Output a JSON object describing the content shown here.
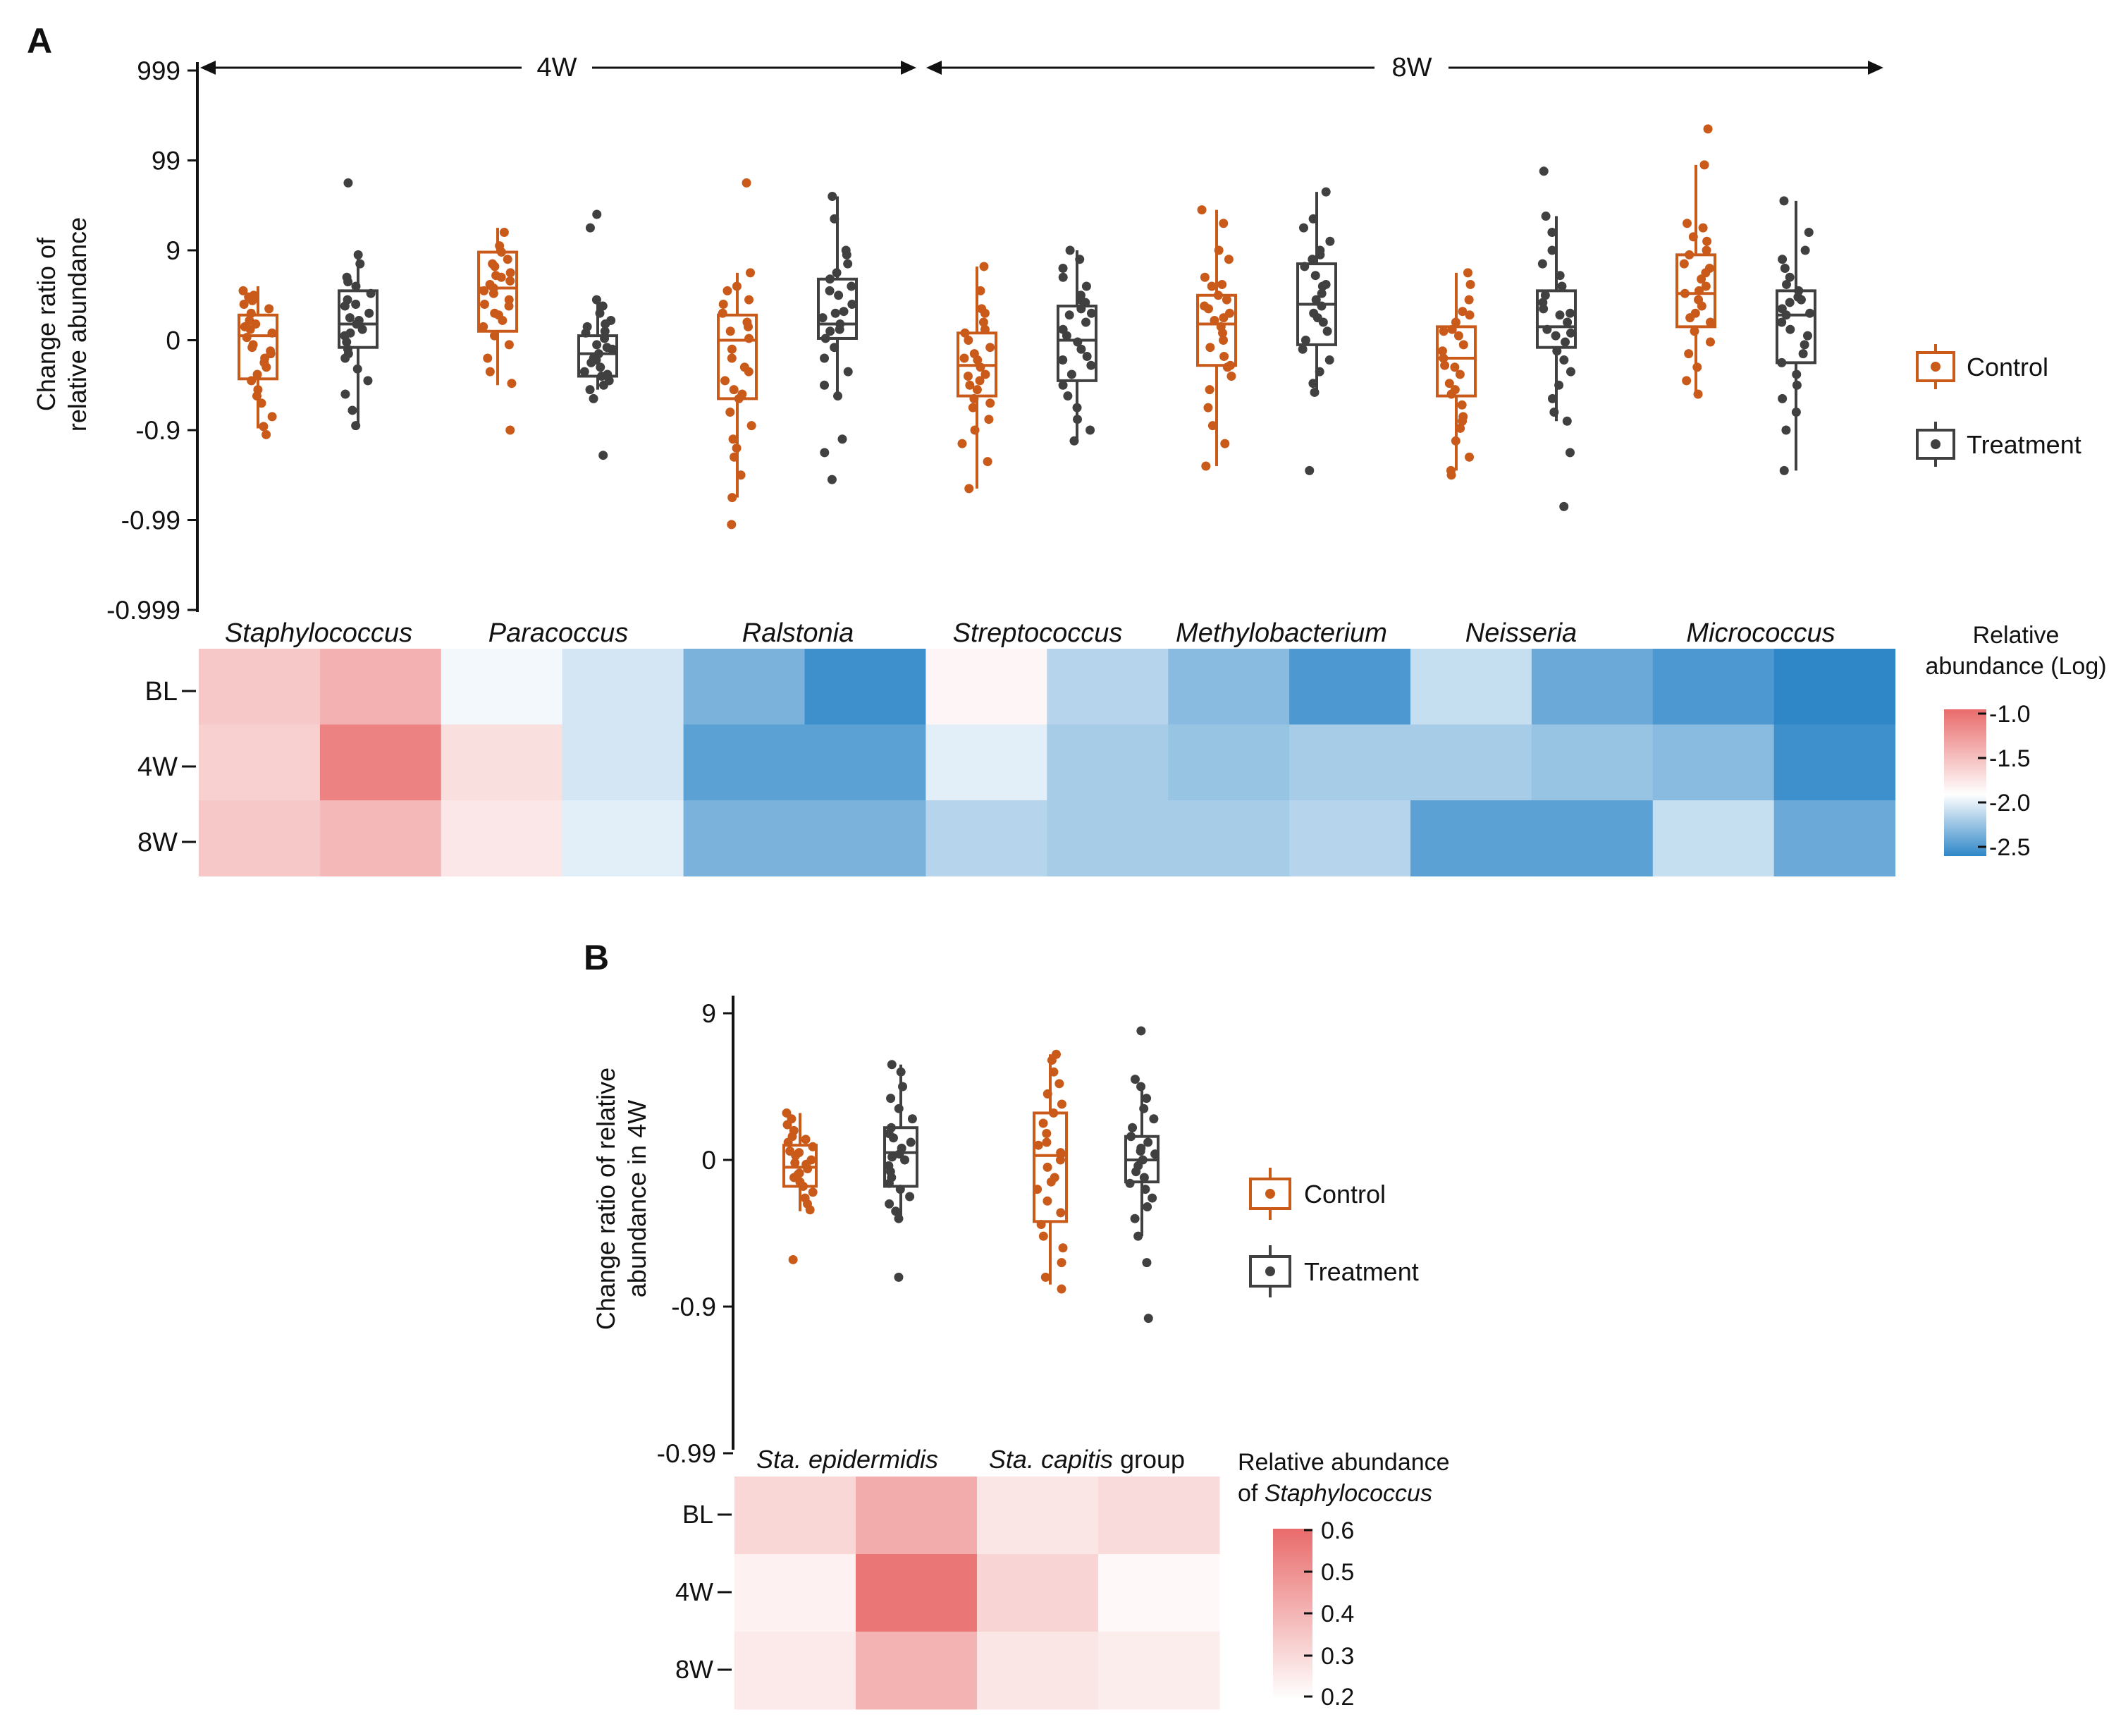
{
  "colors": {
    "control": "#c95a1a",
    "treatment": "#404040",
    "heat_high": "#e96b6b",
    "heat_mid": "#ffffff",
    "heat_low": "#2f87c8",
    "axis": "#111111"
  },
  "chart_data": [
    {
      "panel": "A",
      "type": "box",
      "ylabel_lines": [
        "Change ratio of",
        "relative abundance"
      ],
      "y_ticks": [
        "999",
        "99",
        "9",
        "0",
        "-0.9",
        "-0.99",
        "-0.999"
      ],
      "period_labels": [
        "4W",
        "8W"
      ],
      "categories": [
        "Staphylococcus",
        "Paracoccus",
        "Ralstonia",
        "Streptococcus",
        "Methylobacterium",
        "Neisseria",
        "Micrococcus"
      ],
      "legend": [
        "Control",
        "Treatment"
      ],
      "series": [
        {
          "name": "Control",
          "color_key": "control",
          "boxes": [
            {
              "q1": -0.43,
              "med": 0.05,
              "q3": 0.28,
              "lo": -0.98,
              "hi": 0.6,
              "pts": [
                0.55,
                0.48,
                0.4,
                0.3,
                0.22,
                0.15,
                0.08,
                0.03,
                -0.05,
                -0.12,
                -0.2,
                -0.3,
                -0.38,
                -0.45,
                -0.55,
                -0.7,
                -0.85,
                -0.96,
                -1.05,
                0.35,
                0.12,
                -0.25,
                0.44,
                -0.62,
                0.18,
                -0.08,
                0.5,
                -0.15
              ]
            },
            {
              "q1": 0.1,
              "med": 0.58,
              "q3": 0.98,
              "lo": -0.5,
              "hi": 1.25,
              "pts": [
                1.2,
                1.05,
                0.98,
                0.9,
                0.82,
                0.75,
                0.7,
                0.62,
                0.58,
                0.52,
                0.45,
                0.38,
                0.3,
                0.22,
                0.15,
                0.05,
                -0.05,
                -0.2,
                -0.35,
                -0.48,
                -1.0,
                0.85,
                0.66,
                0.4,
                0.28,
                0.72,
                0.55
              ]
            },
            {
              "q1": -0.65,
              "med": 0.0,
              "q3": 0.28,
              "lo": -1.75,
              "hi": 0.75,
              "pts": [
                1.75,
                0.75,
                0.6,
                0.45,
                0.4,
                0.3,
                0.2,
                0.1,
                0.02,
                -0.1,
                -0.2,
                -0.3,
                -0.45,
                -0.55,
                -0.65,
                -0.8,
                -0.95,
                -1.1,
                -1.3,
                -1.5,
                -1.75,
                -2.05,
                0.55,
                -0.35,
                0.15,
                -0.6,
                -1.2
              ]
            },
            {
              "q1": -0.62,
              "med": -0.28,
              "q3": 0.08,
              "lo": -1.65,
              "hi": 0.82,
              "pts": [
                0.82,
                0.55,
                0.35,
                0.2,
                0.08,
                0.0,
                -0.08,
                -0.15,
                -0.22,
                -0.3,
                -0.38,
                -0.45,
                -0.55,
                -0.65,
                -0.75,
                -0.88,
                -1.0,
                -1.15,
                -1.35,
                -1.65,
                0.12,
                -0.4,
                -0.2,
                -0.7,
                0.3,
                -0.5
              ]
            },
            {
              "q1": -0.28,
              "med": 0.18,
              "q3": 0.5,
              "lo": -1.4,
              "hi": 1.45,
              "pts": [
                1.45,
                1.3,
                1.0,
                0.9,
                0.7,
                0.6,
                0.5,
                0.45,
                0.38,
                0.3,
                0.22,
                0.15,
                0.08,
                0.0,
                -0.08,
                -0.18,
                -0.28,
                -0.4,
                -0.55,
                -0.75,
                -0.95,
                -1.15,
                -1.4,
                0.25,
                0.62,
                -0.3,
                0.35
              ]
            },
            {
              "q1": -0.62,
              "med": -0.2,
              "q3": 0.15,
              "lo": -1.45,
              "hi": 0.75,
              "pts": [
                0.75,
                0.62,
                0.45,
                0.32,
                0.2,
                0.12,
                0.05,
                -0.05,
                -0.12,
                -0.2,
                -0.28,
                -0.38,
                -0.48,
                -0.6,
                -0.72,
                -0.85,
                -0.98,
                -1.12,
                -1.3,
                -1.45,
                -1.5,
                0.1,
                -0.3,
                -0.55,
                0.28,
                -0.9
              ]
            },
            {
              "q1": 0.15,
              "med": 0.52,
              "q3": 0.95,
              "lo": -0.6,
              "hi": 1.95,
              "pts": [
                2.35,
                1.95,
                1.3,
                1.25,
                1.1,
                1.0,
                0.95,
                0.85,
                0.75,
                0.68,
                0.6,
                0.52,
                0.45,
                0.38,
                0.3,
                0.2,
                0.1,
                -0.02,
                -0.15,
                -0.3,
                -0.45,
                -0.6,
                0.8,
                0.55,
                0.25,
                1.15
              ]
            }
          ]
        },
        {
          "name": "Treatment",
          "color_key": "treatment",
          "boxes": [
            {
              "q1": -0.08,
              "med": 0.18,
              "q3": 0.55,
              "lo": -0.95,
              "hi": 0.95,
              "pts": [
                1.75,
                0.95,
                0.85,
                0.7,
                0.6,
                0.52,
                0.45,
                0.38,
                0.3,
                0.22,
                0.18,
                0.12,
                0.05,
                -0.02,
                -0.1,
                -0.2,
                -0.32,
                -0.45,
                -0.6,
                -0.78,
                -0.95,
                0.4,
                0.25,
                -0.15,
                0.65,
                0.08
              ]
            },
            {
              "q1": -0.4,
              "med": -0.15,
              "q3": 0.05,
              "lo": -0.55,
              "hi": 0.45,
              "pts": [
                1.4,
                1.25,
                0.45,
                0.38,
                0.3,
                0.22,
                0.15,
                0.08,
                0.02,
                -0.05,
                -0.1,
                -0.15,
                -0.2,
                -0.25,
                -0.3,
                -0.35,
                -0.4,
                -0.45,
                -0.5,
                -0.55,
                -0.65,
                -1.28,
                0.1,
                -0.22,
                -0.38,
                0.18,
                -0.08
              ]
            },
            {
              "q1": 0.02,
              "med": 0.18,
              "q3": 0.68,
              "lo": -0.62,
              "hi": 1.6,
              "pts": [
                1.6,
                1.35,
                1.0,
                0.95,
                0.85,
                0.75,
                0.68,
                0.6,
                0.5,
                0.4,
                0.32,
                0.25,
                0.18,
                0.1,
                0.02,
                -0.08,
                -0.2,
                -0.35,
                -0.5,
                -0.62,
                -1.1,
                -1.25,
                -1.55,
                0.55,
                0.3,
                0.12
              ]
            },
            {
              "q1": -0.45,
              "med": 0.0,
              "q3": 0.38,
              "lo": -1.12,
              "hi": 1.0,
              "pts": [
                1.0,
                0.9,
                0.8,
                0.7,
                0.6,
                0.5,
                0.42,
                0.35,
                0.28,
                0.2,
                0.12,
                0.05,
                -0.02,
                -0.1,
                -0.18,
                -0.28,
                -0.38,
                -0.5,
                -0.62,
                -0.75,
                -0.88,
                -1.0,
                -1.12,
                0.3,
                -0.22,
                0.45
              ]
            },
            {
              "q1": -0.05,
              "med": 0.4,
              "q3": 0.85,
              "lo": -0.58,
              "hi": 1.65,
              "pts": [
                1.65,
                1.35,
                1.25,
                1.1,
                1.0,
                0.9,
                0.82,
                0.72,
                0.62,
                0.52,
                0.45,
                0.38,
                0.3,
                0.2,
                0.1,
                0.0,
                -0.1,
                -0.22,
                -0.35,
                -0.48,
                -0.58,
                -1.45,
                0.6,
                0.25,
                0.95
              ]
            },
            {
              "q1": -0.08,
              "med": 0.15,
              "q3": 0.55,
              "lo": -0.9,
              "hi": 1.38,
              "pts": [
                1.88,
                1.38,
                1.2,
                1.0,
                0.85,
                0.72,
                0.6,
                0.5,
                0.42,
                0.35,
                0.28,
                0.2,
                0.12,
                0.05,
                -0.02,
                -0.12,
                -0.22,
                -0.35,
                -0.5,
                -0.65,
                -0.8,
                -0.9,
                -1.25,
                -1.85,
                0.3,
                0.08
              ]
            },
            {
              "q1": -0.25,
              "med": 0.28,
              "q3": 0.55,
              "lo": -1.45,
              "hi": 1.55,
              "pts": [
                1.55,
                1.2,
                1.0,
                0.9,
                0.8,
                0.7,
                0.62,
                0.55,
                0.48,
                0.42,
                0.35,
                0.28,
                0.2,
                0.12,
                0.05,
                -0.05,
                -0.15,
                -0.25,
                -0.38,
                -0.5,
                -0.65,
                -0.8,
                -1.0,
                -1.45,
                0.45,
                0.3
              ]
            }
          ]
        }
      ],
      "heatmap": {
        "rows": [
          "BL",
          "4W",
          "8W"
        ],
        "colorbar_title": [
          "Relative",
          "abundance (Log)"
        ],
        "colorbar_ticks": [
          "-1.0",
          "-1.5",
          "-2.0",
          "-2.5"
        ],
        "colorbar_range": [
          -2.6,
          -0.95
        ],
        "values": [
          [
            -1.55,
            -1.4,
            -1.95,
            -2.05,
            -2.35,
            -2.55,
            -1.85,
            -2.15,
            -2.3,
            -2.5,
            -2.1,
            -2.4,
            -2.5,
            -2.6
          ],
          [
            -1.6,
            -1.1,
            -1.7,
            -2.05,
            -2.45,
            -2.45,
            -2.0,
            -2.2,
            -2.25,
            -2.2,
            -2.2,
            -2.25,
            -2.3,
            -2.55
          ],
          [
            -1.55,
            -1.45,
            -1.75,
            -2.0,
            -2.35,
            -2.35,
            -2.15,
            -2.2,
            -2.2,
            -2.15,
            -2.45,
            -2.45,
            -2.1,
            -2.4
          ]
        ]
      }
    },
    {
      "panel": "B",
      "type": "box",
      "ylabel_lines": [
        "Change ratio of relative",
        "abundance in 4W"
      ],
      "y_ticks": [
        "9",
        "0",
        "-0.9",
        "-0.99"
      ],
      "legend": [
        "Control",
        "Treatment"
      ],
      "category_labels": [
        {
          "italic": "Sta. epidermidis",
          "plain": ""
        },
        {
          "italic": "Sta. capitis",
          "plain": " group"
        }
      ],
      "series": [
        {
          "name": "Control",
          "color_key": "control",
          "boxes": [
            {
              "q1": -0.18,
              "med": -0.05,
              "q3": 0.1,
              "lo": -0.35,
              "hi": 0.32,
              "pts": [
                0.32,
                0.28,
                0.24,
                0.2,
                0.16,
                0.12,
                0.09,
                0.06,
                0.03,
                0.0,
                -0.03,
                -0.06,
                -0.09,
                -0.12,
                -0.15,
                -0.18,
                -0.22,
                -0.26,
                -0.3,
                -0.34,
                -0.68,
                0.14,
                -0.02,
                0.05,
                -0.1
              ]
            },
            {
              "q1": -0.42,
              "med": 0.03,
              "q3": 0.32,
              "lo": -0.85,
              "hi": 0.72,
              "pts": [
                0.72,
                0.68,
                0.6,
                0.52,
                0.45,
                0.38,
                0.32,
                0.25,
                0.18,
                0.12,
                0.05,
                0.0,
                -0.05,
                -0.12,
                -0.2,
                -0.28,
                -0.36,
                -0.44,
                -0.52,
                -0.6,
                -0.7,
                -0.8,
                -0.88,
                0.1,
                -0.15
              ]
            }
          ]
        },
        {
          "name": "Treatment",
          "color_key": "treatment",
          "boxes": [
            {
              "q1": -0.18,
              "med": 0.05,
              "q3": 0.22,
              "lo": -0.4,
              "hi": 0.65,
              "pts": [
                0.65,
                0.6,
                0.5,
                0.42,
                0.35,
                0.28,
                0.22,
                0.18,
                0.12,
                0.08,
                0.04,
                0.0,
                -0.04,
                -0.08,
                -0.12,
                -0.16,
                -0.2,
                -0.25,
                -0.3,
                -0.35,
                -0.4,
                -0.8,
                0.15,
                0.02
              ]
            },
            {
              "q1": -0.15,
              "med": 0.0,
              "q3": 0.16,
              "lo": -0.52,
              "hi": 0.5,
              "pts": [
                0.88,
                0.55,
                0.5,
                0.42,
                0.35,
                0.28,
                0.22,
                0.16,
                0.12,
                0.08,
                0.04,
                0.0,
                -0.04,
                -0.08,
                -0.12,
                -0.16,
                -0.2,
                -0.26,
                -0.32,
                -0.4,
                -0.52,
                -0.7,
                -1.08,
                0.06
              ]
            }
          ]
        }
      ],
      "heatmap": {
        "rows": [
          "BL",
          "4W",
          "8W"
        ],
        "colorbar_title_line1": "Relative abundance",
        "colorbar_title_line2_plain": "of ",
        "colorbar_title_line2_italic": "Staphylococcus",
        "colorbar_ticks": [
          "0.6",
          "0.5",
          "0.4",
          "0.3",
          "0.2"
        ],
        "colorbar_range": [
          0.19,
          0.6
        ],
        "values": [
          [
            0.3,
            0.42,
            0.26,
            0.29
          ],
          [
            0.23,
            0.57,
            0.31,
            0.21
          ],
          [
            0.25,
            0.4,
            0.26,
            0.24
          ]
        ]
      }
    }
  ],
  "panel_labels": [
    "A",
    "B"
  ]
}
